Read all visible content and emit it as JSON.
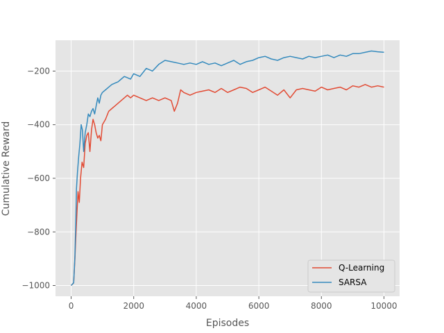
{
  "chart_data": {
    "type": "line",
    "title": "",
    "xlabel": "Episodes",
    "ylabel": "Cumulative Reward",
    "xlim": [
      -500,
      10500
    ],
    "ylim": [
      -1040,
      -85
    ],
    "xticks": [
      0,
      2000,
      4000,
      6000,
      8000,
      10000
    ],
    "xtick_labels": [
      "0",
      "2000",
      "4000",
      "6000",
      "8000",
      "10000"
    ],
    "yticks": [
      -1000,
      -800,
      -600,
      -400,
      -200
    ],
    "ytick_labels": [
      "−1000",
      "−800",
      "−600",
      "−400",
      "−200"
    ],
    "grid": true,
    "legend_position": "bottom-right",
    "series": [
      {
        "name": "Q-Learning",
        "color": "#E24A33",
        "x": [
          0,
          80,
          120,
          150,
          180,
          220,
          260,
          300,
          350,
          400,
          450,
          500,
          550,
          600,
          650,
          700,
          750,
          800,
          850,
          900,
          950,
          1000,
          1100,
          1200,
          1300,
          1400,
          1500,
          1600,
          1700,
          1800,
          1900,
          2000,
          2200,
          2400,
          2600,
          2800,
          3000,
          3200,
          3300,
          3400,
          3500,
          3600,
          3800,
          4000,
          4200,
          4400,
          4600,
          4800,
          5000,
          5200,
          5400,
          5600,
          5800,
          6000,
          6200,
          6400,
          6600,
          6800,
          7000,
          7200,
          7400,
          7600,
          7800,
          8000,
          8200,
          8400,
          8600,
          8800,
          9000,
          9200,
          9400,
          9600,
          9800,
          10000
        ],
        "y": [
          -1000,
          -990,
          -900,
          -820,
          -740,
          -650,
          -690,
          -600,
          -540,
          -560,
          -470,
          -440,
          -430,
          -500,
          -420,
          -380,
          -400,
          -430,
          -450,
          -440,
          -460,
          -400,
          -380,
          -350,
          -340,
          -330,
          -320,
          -310,
          -300,
          -290,
          -300,
          -290,
          -300,
          -310,
          -300,
          -310,
          -300,
          -310,
          -350,
          -320,
          -270,
          -280,
          -290,
          -280,
          -275,
          -270,
          -280,
          -265,
          -280,
          -270,
          -260,
          -265,
          -280,
          -270,
          -260,
          -275,
          -290,
          -270,
          -300,
          -270,
          -265,
          -270,
          -275,
          -260,
          -270,
          -265,
          -260,
          -270,
          -255,
          -260,
          -250,
          -260,
          -255,
          -260
        ]
      },
      {
        "name": "SARSA",
        "color": "#348ABD",
        "x": [
          0,
          80,
          120,
          150,
          170,
          200,
          240,
          280,
          320,
          360,
          400,
          450,
          500,
          550,
          600,
          650,
          700,
          750,
          800,
          850,
          900,
          950,
          1000,
          1100,
          1200,
          1300,
          1400,
          1500,
          1600,
          1700,
          1800,
          1900,
          2000,
          2200,
          2400,
          2600,
          2800,
          3000,
          3200,
          3400,
          3600,
          3800,
          4000,
          4200,
          4400,
          4600,
          4800,
          5000,
          5200,
          5400,
          5600,
          5800,
          6000,
          6200,
          6400,
          6600,
          6800,
          7000,
          7200,
          7400,
          7600,
          7800,
          8000,
          8200,
          8400,
          8600,
          8800,
          9000,
          9200,
          9400,
          9600,
          9800,
          10000
        ],
        "y": [
          -1000,
          -990,
          -890,
          -760,
          -640,
          -580,
          -520,
          -470,
          -400,
          -420,
          -500,
          -430,
          -400,
          -360,
          -370,
          -350,
          -340,
          -360,
          -330,
          -300,
          -320,
          -290,
          -280,
          -270,
          -260,
          -250,
          -245,
          -240,
          -230,
          -220,
          -225,
          -230,
          -210,
          -220,
          -190,
          -200,
          -175,
          -160,
          -165,
          -170,
          -175,
          -170,
          -175,
          -165,
          -175,
          -170,
          -180,
          -170,
          -160,
          -175,
          -165,
          -160,
          -150,
          -145,
          -155,
          -160,
          -150,
          -145,
          -150,
          -155,
          -145,
          -150,
          -145,
          -140,
          -150,
          -140,
          -145,
          -135,
          -135,
          -130,
          -125,
          -128,
          -130
        ]
      }
    ]
  }
}
